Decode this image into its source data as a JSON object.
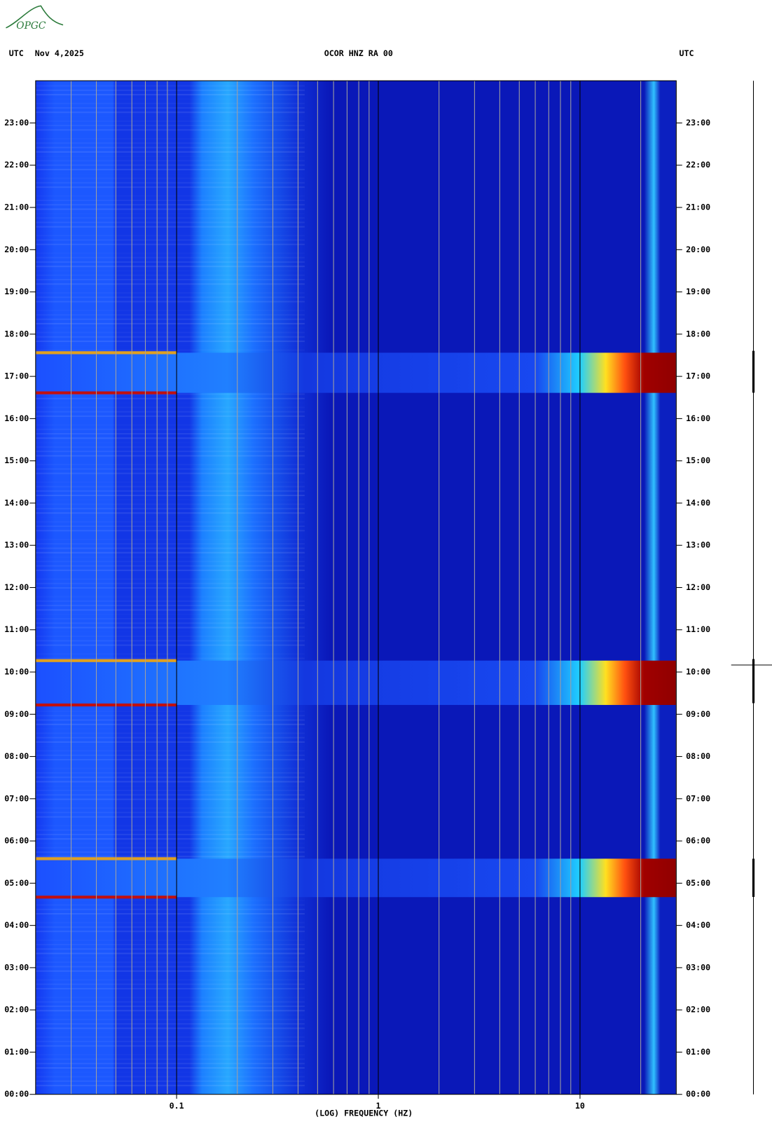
{
  "logo": "OPGC",
  "chart_data": {
    "type": "spectrogram",
    "time_zone_left": "UTC",
    "date": "Nov 4,2025",
    "title": "OCOR HNZ RA 00",
    "time_zone_right": "UTC",
    "xlabel": "(LOG) FREQUENCY (HZ)",
    "xscale": "log",
    "xlim": [
      0.02,
      30
    ],
    "xticks": [
      {
        "value": 0.1,
        "label": "0.1"
      },
      1,
      10
    ],
    "xminorticks": [
      0.02,
      0.03,
      0.04,
      0.05,
      0.06,
      0.07,
      0.08,
      0.09,
      0.2,
      0.3,
      0.4,
      0.5,
      0.6,
      0.7,
      0.8,
      0.9,
      2,
      3,
      4,
      5,
      6,
      7,
      8,
      9,
      20,
      30
    ],
    "ylim": [
      0,
      24
    ],
    "yticks": [
      {
        "value": 0,
        "label": "00:00"
      },
      {
        "value": 1,
        "label": "01:00"
      },
      {
        "value": 2,
        "label": "02:00"
      },
      {
        "value": 3,
        "label": "03:00"
      },
      {
        "value": 4,
        "label": "04:00"
      },
      {
        "value": 5,
        "label": "05:00"
      },
      {
        "value": 6,
        "label": "06:00"
      },
      {
        "value": 7,
        "label": "07:00"
      },
      {
        "value": 8,
        "label": "08:00"
      },
      {
        "value": 9,
        "label": "09:00"
      },
      {
        "value": 10,
        "label": "10:00"
      },
      {
        "value": 11,
        "label": "11:00"
      },
      {
        "value": 12,
        "label": "12:00"
      },
      {
        "value": 13,
        "label": "13:00"
      },
      {
        "value": 14,
        "label": "14:00"
      },
      {
        "value": 15,
        "label": "15:00"
      },
      {
        "value": 16,
        "label": "16:00"
      },
      {
        "value": 17,
        "label": "17:00"
      },
      {
        "value": 18,
        "label": "18:00"
      },
      {
        "value": 19,
        "label": "19:00"
      },
      {
        "value": 20,
        "label": "20:00"
      },
      {
        "value": 21,
        "label": "21:00"
      },
      {
        "value": 22,
        "label": "22:00"
      },
      {
        "value": 23,
        "label": "23:00"
      }
    ],
    "events": [
      {
        "start": 4.67,
        "end": 5.58
      },
      {
        "start": 9.22,
        "end": 10.27
      },
      {
        "start": 16.61,
        "end": 17.56
      }
    ]
  }
}
